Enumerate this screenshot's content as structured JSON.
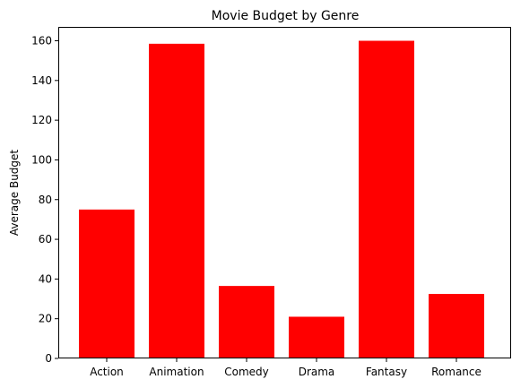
{
  "chart_data": {
    "type": "bar",
    "title": "Movie Budget by Genre",
    "xlabel": "",
    "ylabel": "Average Budget",
    "categories": [
      "Action",
      "Animation",
      "Comedy",
      "Drama",
      "Fantasy",
      "Romance"
    ],
    "values": [
      75,
      158.5,
      36.5,
      21,
      160,
      32.5
    ],
    "ylim": [
      0,
      167
    ],
    "yticks": [
      0,
      20,
      40,
      60,
      80,
      100,
      120,
      140,
      160
    ],
    "grid": false,
    "bar_color": "#ff0000"
  }
}
